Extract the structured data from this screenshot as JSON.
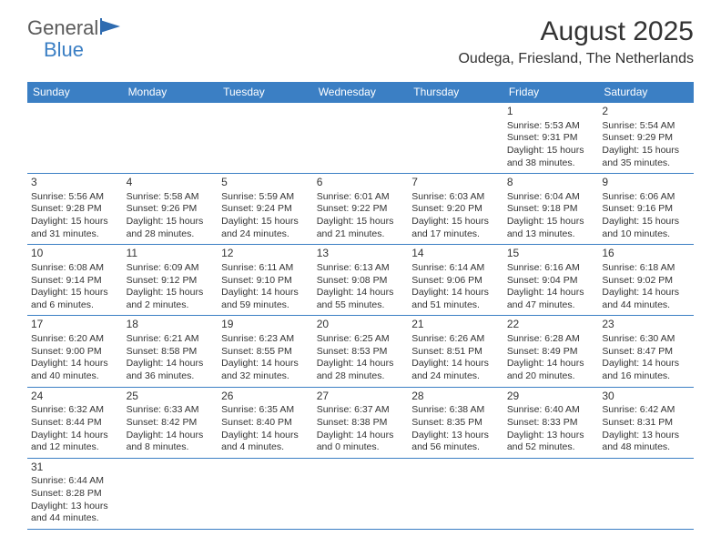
{
  "logo": {
    "text1": "General",
    "text2": "Blue"
  },
  "title": "August 2025",
  "location": "Oudega, Friesland, The Netherlands",
  "colors": {
    "header_bg": "#3b7fc4",
    "header_text": "#ffffff",
    "cell_border": "#3b7fc4",
    "body_text": "#333333",
    "logo_gray": "#5a5a5a",
    "logo_blue": "#3b7fc4",
    "bg": "#ffffff"
  },
  "weekdays": [
    "Sunday",
    "Monday",
    "Tuesday",
    "Wednesday",
    "Thursday",
    "Friday",
    "Saturday"
  ],
  "weeks": [
    [
      null,
      null,
      null,
      null,
      null,
      {
        "n": "1",
        "sr": "5:53 AM",
        "ss": "9:31 PM",
        "dl": "15 hours and 38 minutes."
      },
      {
        "n": "2",
        "sr": "5:54 AM",
        "ss": "9:29 PM",
        "dl": "15 hours and 35 minutes."
      }
    ],
    [
      {
        "n": "3",
        "sr": "5:56 AM",
        "ss": "9:28 PM",
        "dl": "15 hours and 31 minutes."
      },
      {
        "n": "4",
        "sr": "5:58 AM",
        "ss": "9:26 PM",
        "dl": "15 hours and 28 minutes."
      },
      {
        "n": "5",
        "sr": "5:59 AM",
        "ss": "9:24 PM",
        "dl": "15 hours and 24 minutes."
      },
      {
        "n": "6",
        "sr": "6:01 AM",
        "ss": "9:22 PM",
        "dl": "15 hours and 21 minutes."
      },
      {
        "n": "7",
        "sr": "6:03 AM",
        "ss": "9:20 PM",
        "dl": "15 hours and 17 minutes."
      },
      {
        "n": "8",
        "sr": "6:04 AM",
        "ss": "9:18 PM",
        "dl": "15 hours and 13 minutes."
      },
      {
        "n": "9",
        "sr": "6:06 AM",
        "ss": "9:16 PM",
        "dl": "15 hours and 10 minutes."
      }
    ],
    [
      {
        "n": "10",
        "sr": "6:08 AM",
        "ss": "9:14 PM",
        "dl": "15 hours and 6 minutes."
      },
      {
        "n": "11",
        "sr": "6:09 AM",
        "ss": "9:12 PM",
        "dl": "15 hours and 2 minutes."
      },
      {
        "n": "12",
        "sr": "6:11 AM",
        "ss": "9:10 PM",
        "dl": "14 hours and 59 minutes."
      },
      {
        "n": "13",
        "sr": "6:13 AM",
        "ss": "9:08 PM",
        "dl": "14 hours and 55 minutes."
      },
      {
        "n": "14",
        "sr": "6:14 AM",
        "ss": "9:06 PM",
        "dl": "14 hours and 51 minutes."
      },
      {
        "n": "15",
        "sr": "6:16 AM",
        "ss": "9:04 PM",
        "dl": "14 hours and 47 minutes."
      },
      {
        "n": "16",
        "sr": "6:18 AM",
        "ss": "9:02 PM",
        "dl": "14 hours and 44 minutes."
      }
    ],
    [
      {
        "n": "17",
        "sr": "6:20 AM",
        "ss": "9:00 PM",
        "dl": "14 hours and 40 minutes."
      },
      {
        "n": "18",
        "sr": "6:21 AM",
        "ss": "8:58 PM",
        "dl": "14 hours and 36 minutes."
      },
      {
        "n": "19",
        "sr": "6:23 AM",
        "ss": "8:55 PM",
        "dl": "14 hours and 32 minutes."
      },
      {
        "n": "20",
        "sr": "6:25 AM",
        "ss": "8:53 PM",
        "dl": "14 hours and 28 minutes."
      },
      {
        "n": "21",
        "sr": "6:26 AM",
        "ss": "8:51 PM",
        "dl": "14 hours and 24 minutes."
      },
      {
        "n": "22",
        "sr": "6:28 AM",
        "ss": "8:49 PM",
        "dl": "14 hours and 20 minutes."
      },
      {
        "n": "23",
        "sr": "6:30 AM",
        "ss": "8:47 PM",
        "dl": "14 hours and 16 minutes."
      }
    ],
    [
      {
        "n": "24",
        "sr": "6:32 AM",
        "ss": "8:44 PM",
        "dl": "14 hours and 12 minutes."
      },
      {
        "n": "25",
        "sr": "6:33 AM",
        "ss": "8:42 PM",
        "dl": "14 hours and 8 minutes."
      },
      {
        "n": "26",
        "sr": "6:35 AM",
        "ss": "8:40 PM",
        "dl": "14 hours and 4 minutes."
      },
      {
        "n": "27",
        "sr": "6:37 AM",
        "ss": "8:38 PM",
        "dl": "14 hours and 0 minutes."
      },
      {
        "n": "28",
        "sr": "6:38 AM",
        "ss": "8:35 PM",
        "dl": "13 hours and 56 minutes."
      },
      {
        "n": "29",
        "sr": "6:40 AM",
        "ss": "8:33 PM",
        "dl": "13 hours and 52 minutes."
      },
      {
        "n": "30",
        "sr": "6:42 AM",
        "ss": "8:31 PM",
        "dl": "13 hours and 48 minutes."
      }
    ],
    [
      {
        "n": "31",
        "sr": "6:44 AM",
        "ss": "8:28 PM",
        "dl": "13 hours and 44 minutes."
      },
      null,
      null,
      null,
      null,
      null,
      null
    ]
  ],
  "labels": {
    "sunrise": "Sunrise:",
    "sunset": "Sunset:",
    "daylight": "Daylight:"
  }
}
